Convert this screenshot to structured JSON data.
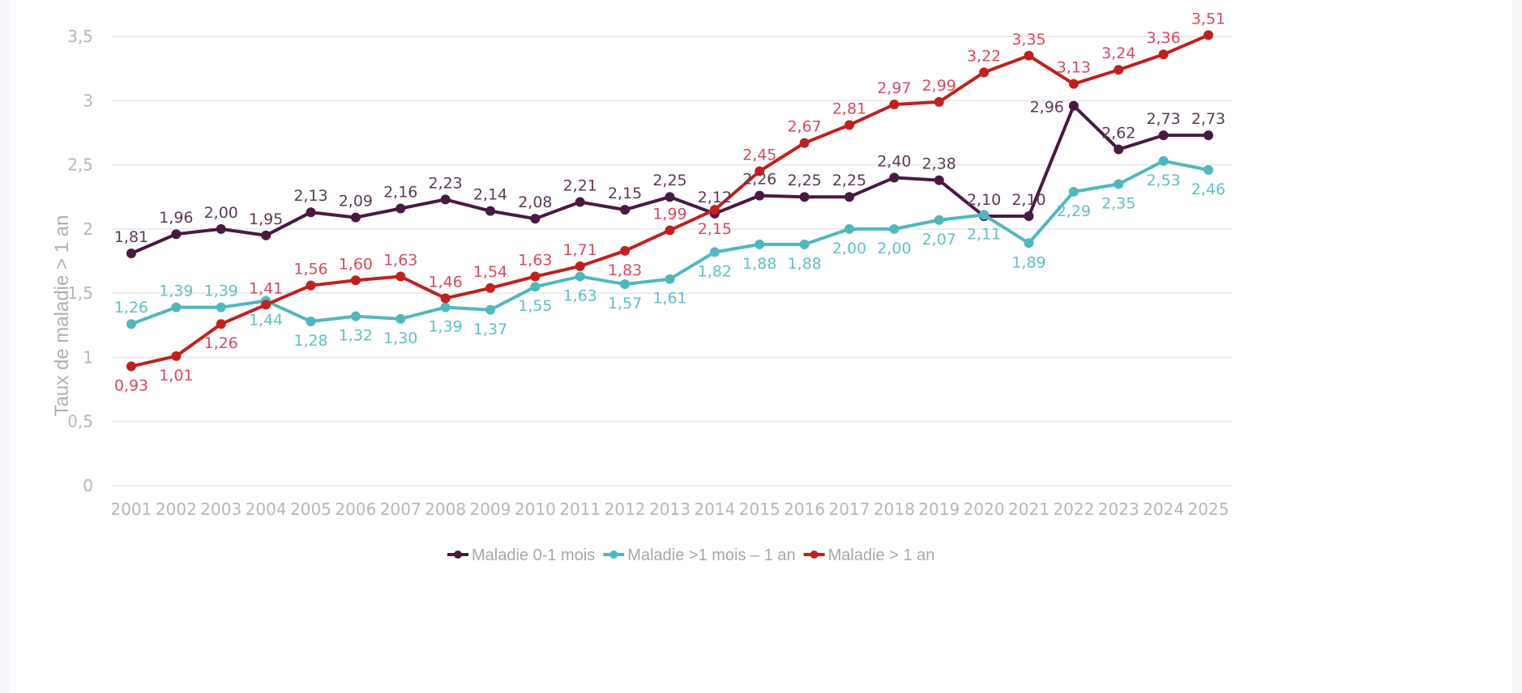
{
  "chart_data": {
    "type": "line",
    "title": "",
    "xlabel": "",
    "ylabel": "Taux de maladie > 1 an",
    "ylim": [
      0,
      3.5
    ],
    "yticks": [
      0,
      0.5,
      1,
      1.5,
      2,
      2.5,
      3,
      3.5
    ],
    "ytick_labels": [
      "0",
      "0,5",
      "1",
      "1,5",
      "2",
      "2,5",
      "3",
      "3,5"
    ],
    "grid": true,
    "legend_position": "bottom-center",
    "categories": [
      "2001",
      "2002",
      "2003",
      "2004",
      "2005",
      "2006",
      "2007",
      "2008",
      "2009",
      "2010",
      "2011",
      "2012",
      "2013",
      "2014",
      "2015",
      "2016",
      "2017",
      "2018",
      "2019",
      "2020",
      "2021",
      "2022",
      "2023",
      "2024",
      "2025"
    ],
    "series": [
      {
        "name": "Maladie 0-1 mois",
        "color": "#4a1942",
        "label_color": "#5c3a56",
        "values": [
          1.81,
          1.96,
          2.0,
          1.95,
          2.13,
          2.09,
          2.16,
          2.23,
          2.14,
          2.08,
          2.21,
          2.15,
          2.25,
          2.12,
          2.26,
          2.25,
          2.25,
          2.4,
          2.38,
          2.1,
          2.1,
          2.96,
          2.62,
          2.73,
          2.73
        ],
        "labels": [
          "1,81",
          "1,96",
          "2,00",
          "1,95",
          "2,13",
          "2,09",
          "2,16",
          "2,23",
          "2,14",
          "2,08",
          "2,21",
          "2,15",
          "2,25",
          "2,12",
          "2,26",
          "2,25",
          "2,25",
          "2,40",
          "2,38",
          "2,10",
          "2,10",
          "2,96",
          "2,62",
          "2,73",
          "2,73"
        ]
      },
      {
        "name": "Maladie >1 mois – 1 an",
        "color": "#4fb8bf",
        "label_color": "#5fc0c6",
        "values": [
          1.26,
          1.39,
          1.39,
          1.44,
          1.28,
          1.32,
          1.3,
          1.39,
          1.37,
          1.55,
          1.63,
          1.57,
          1.61,
          1.82,
          1.88,
          1.88,
          2.0,
          2.0,
          2.07,
          2.11,
          1.89,
          2.29,
          2.35,
          2.53,
          2.46
        ],
        "labels": [
          "1,26",
          "1,39",
          "1,39",
          "1,44",
          "1,28",
          "1,32",
          "1,30",
          "1,39",
          "1,37",
          "1,55",
          "1,63",
          "1,57",
          "1,61",
          "1,82",
          "1,88",
          "1,88",
          "2,00",
          "2,00",
          "2,07",
          "2,11",
          "1,89",
          "2,29",
          "2,35",
          "2,53",
          "2,46"
        ]
      },
      {
        "name": "Maladie > 1 an",
        "color": "#c0201e",
        "label_color": "#d84a5c",
        "values": [
          0.93,
          1.01,
          1.26,
          1.41,
          1.56,
          1.6,
          1.63,
          1.46,
          1.54,
          1.63,
          1.71,
          1.83,
          1.99,
          2.15,
          2.45,
          2.67,
          2.81,
          2.97,
          2.99,
          3.22,
          3.35,
          3.13,
          3.24,
          3.36,
          3.51
        ],
        "labels": [
          "0,93",
          "1,01",
          "1,26",
          "1,41",
          "1,56",
          "1,60",
          "1,63",
          "1,46",
          "1,54",
          "1,63",
          "1,71",
          "1,83",
          "1,99",
          "2,15",
          "2,45",
          "2,67",
          "2,81",
          "2,97",
          "2,99",
          "3,22",
          "3,35",
          "3,13",
          "3,24",
          "3,36",
          "3,51"
        ]
      }
    ]
  }
}
